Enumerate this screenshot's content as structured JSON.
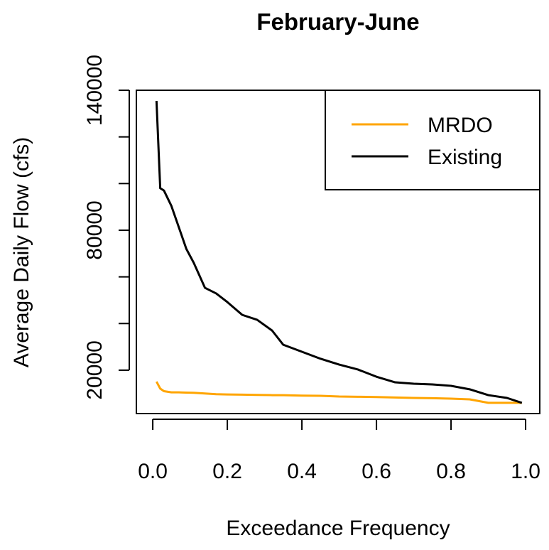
{
  "chart_data": {
    "type": "line",
    "title": "February-June",
    "xlabel": "Exceedance Frequency",
    "ylabel": "Average Daily Flow (cfs)",
    "x": [
      0.01,
      0.02,
      0.03,
      0.05,
      0.07,
      0.09,
      0.11,
      0.14,
      0.17,
      0.2,
      0.24,
      0.28,
      0.32,
      0.35,
      0.4,
      0.45,
      0.5,
      0.55,
      0.6,
      0.65,
      0.7,
      0.75,
      0.8,
      0.85,
      0.9,
      0.95,
      0.99
    ],
    "series": [
      {
        "name": "MRDO",
        "color": "#ffa500",
        "values": [
          15100,
          12100,
          11000,
          10500,
          10500,
          10400,
          10300,
          10000,
          9700,
          9600,
          9500,
          9400,
          9300,
          9300,
          9100,
          9000,
          8700,
          8600,
          8500,
          8300,
          8100,
          8000,
          7800,
          7500,
          6000,
          6000,
          6000
        ]
      },
      {
        "name": "Existing",
        "color": "#000000",
        "values": [
          135400,
          98000,
          97000,
          90400,
          81200,
          72000,
          66000,
          55300,
          52900,
          49200,
          43700,
          41600,
          37000,
          30900,
          27900,
          24900,
          22400,
          20300,
          17200,
          14800,
          14200,
          13900,
          13300,
          11800,
          9300,
          8100,
          6000
        ]
      }
    ],
    "xlim": [
      -0.044,
      1.038
    ],
    "ylim": [
      1400,
      140000
    ],
    "xticks": [
      {
        "value": 0,
        "label": "0.0"
      },
      {
        "value": 0.2,
        "label": "0.2"
      },
      {
        "value": 0.4,
        "label": "0.4"
      },
      {
        "value": 0.6,
        "label": "0.6"
      },
      {
        "value": 0.8,
        "label": "0.8"
      },
      {
        "value": 1,
        "label": "1.0"
      }
    ],
    "yticks": [
      20000,
      80000,
      140000
    ],
    "yminor_ticks": [
      40000,
      60000,
      100000,
      120000
    ],
    "legend": "top-right",
    "grid": false
  }
}
